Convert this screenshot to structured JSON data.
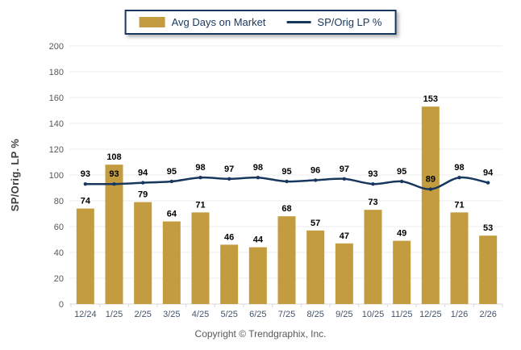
{
  "legend": {
    "items": [
      {
        "label": "Avg Days on Market",
        "marker": "bar-swatch-icon"
      },
      {
        "label": "SP/Orig LP %",
        "marker": "line-swatch-icon"
      }
    ]
  },
  "footer": {
    "copyright": "Copyright © Trendgraphix, Inc."
  },
  "colors": {
    "bar": "#C29C3E",
    "line": "#17375E",
    "grid": "#ECECEC",
    "axis": "#D9D9D9",
    "y_tick_label": "#595959",
    "x_tick_label": "#44546A",
    "value_label": "#000000",
    "legend_border": "#17375E"
  },
  "chart_data": {
    "type": "bar",
    "categories": [
      "12/24",
      "1/25",
      "2/25",
      "3/25",
      "4/25",
      "5/25",
      "6/25",
      "7/25",
      "8/25",
      "9/25",
      "10/25",
      "11/25",
      "12/25",
      "1/26",
      "2/26"
    ],
    "series": [
      {
        "name": "Avg Days on Market",
        "type": "bar",
        "color": "#C29C3E",
        "values": [
          74,
          108,
          79,
          64,
          71,
          46,
          44,
          68,
          57,
          47,
          73,
          49,
          153,
          71,
          53
        ]
      },
      {
        "name": "SP/Orig LP %",
        "type": "line",
        "color": "#17375E",
        "values": [
          93,
          93,
          94,
          95,
          98,
          97,
          98,
          95,
          96,
          97,
          93,
          95,
          89,
          98,
          94
        ]
      }
    ],
    "title": "",
    "xlabel": "",
    "ylabel": "SP/Orig. LP %",
    "ylim": [
      0,
      200
    ],
    "ytick_step": 20,
    "grid": "horizontal",
    "legend_position": "top-center",
    "value_labels": "all"
  }
}
